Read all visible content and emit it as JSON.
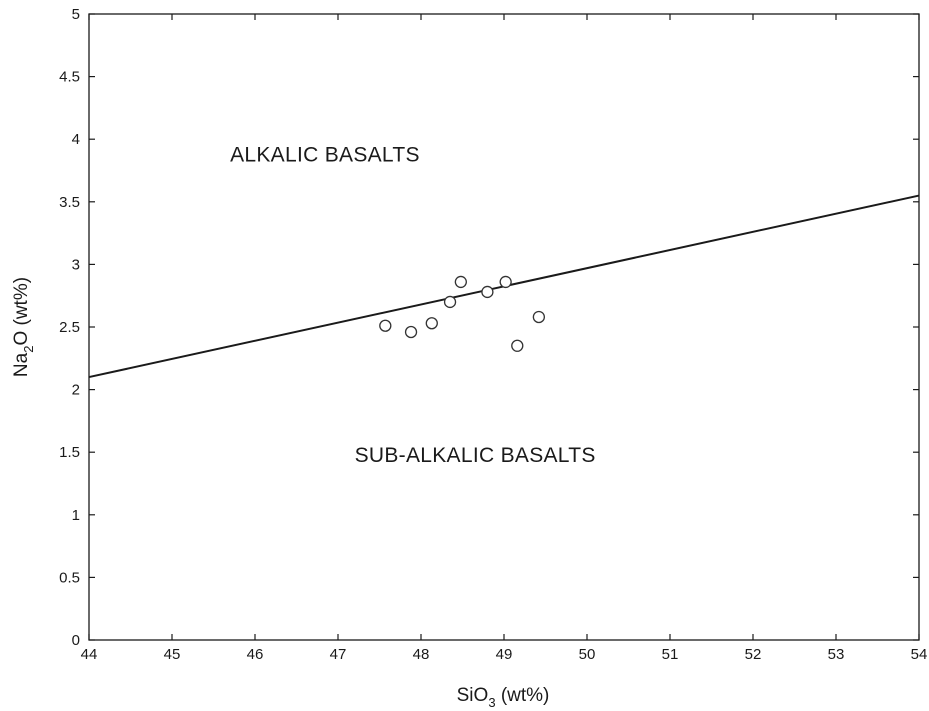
{
  "chart_data": {
    "type": "scatter",
    "title": "",
    "xlabel": {
      "base": "SiO",
      "subscript": "3",
      "suffix": " (wt%)"
    },
    "ylabel": {
      "base": "Na",
      "subscript": "2",
      "suffix": "O (wt%)"
    },
    "xlim": [
      44,
      54
    ],
    "ylim": [
      0,
      5
    ],
    "xticks": [
      "44",
      "45",
      "46",
      "47",
      "48",
      "49",
      "50",
      "51",
      "52",
      "53",
      "54"
    ],
    "yticks": [
      "0",
      "0.5",
      "1",
      "1.5",
      "2",
      "2.5",
      "3",
      "3.5",
      "4",
      "4.5",
      "5"
    ],
    "grid": false,
    "points": [
      {
        "x": 47.57,
        "y": 2.51
      },
      {
        "x": 47.88,
        "y": 2.46
      },
      {
        "x": 48.13,
        "y": 2.53
      },
      {
        "x": 48.35,
        "y": 2.7
      },
      {
        "x": 48.48,
        "y": 2.86
      },
      {
        "x": 48.8,
        "y": 2.78
      },
      {
        "x": 49.02,
        "y": 2.86
      },
      {
        "x": 49.16,
        "y": 2.35
      },
      {
        "x": 49.42,
        "y": 2.58
      }
    ],
    "divider_line": {
      "x": [
        44,
        54
      ],
      "y": [
        2.1,
        3.55
      ]
    },
    "annotations": [
      {
        "text": "ALKALIC BASALTS",
        "x": 45.7,
        "y": 3.82
      },
      {
        "text": "SUB-ALKALIC BASALTS",
        "x": 47.2,
        "y": 1.42
      }
    ],
    "colors": {
      "line": "#1a1a1a",
      "marker_edge": "#333333",
      "marker_fill": "#ffffff",
      "frame": "#1a1a1a"
    }
  }
}
